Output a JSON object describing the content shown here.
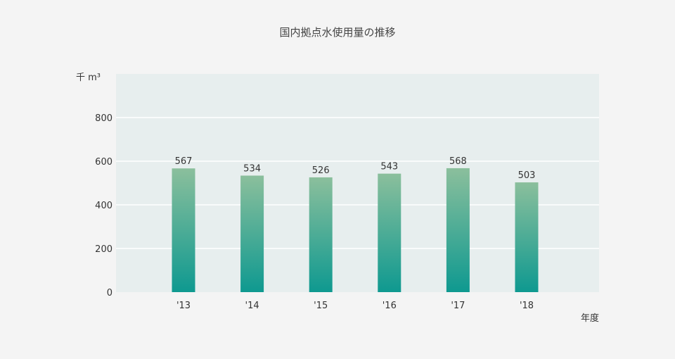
{
  "chart_data": {
    "type": "bar",
    "title": "国内拠点水使用量の推移",
    "ylabel": "千 m³",
    "xlabel": "年度",
    "categories": [
      "'13",
      "'14",
      "'15",
      "'16",
      "'17",
      "'18"
    ],
    "values": [
      567,
      534,
      526,
      543,
      568,
      503
    ],
    "data_labels": [
      "567",
      "534",
      "526",
      "543",
      "568",
      "503"
    ],
    "yticks": [
      "0",
      "200",
      "400",
      "600",
      "800"
    ],
    "ylim": [
      0,
      1000
    ],
    "grid": true,
    "legend": "none"
  },
  "colors": {
    "plot_background": "#e7eeee",
    "bar_top": "#8bbf9c",
    "bar_bottom": "#0e9990",
    "gridline": "#ffffff"
  }
}
